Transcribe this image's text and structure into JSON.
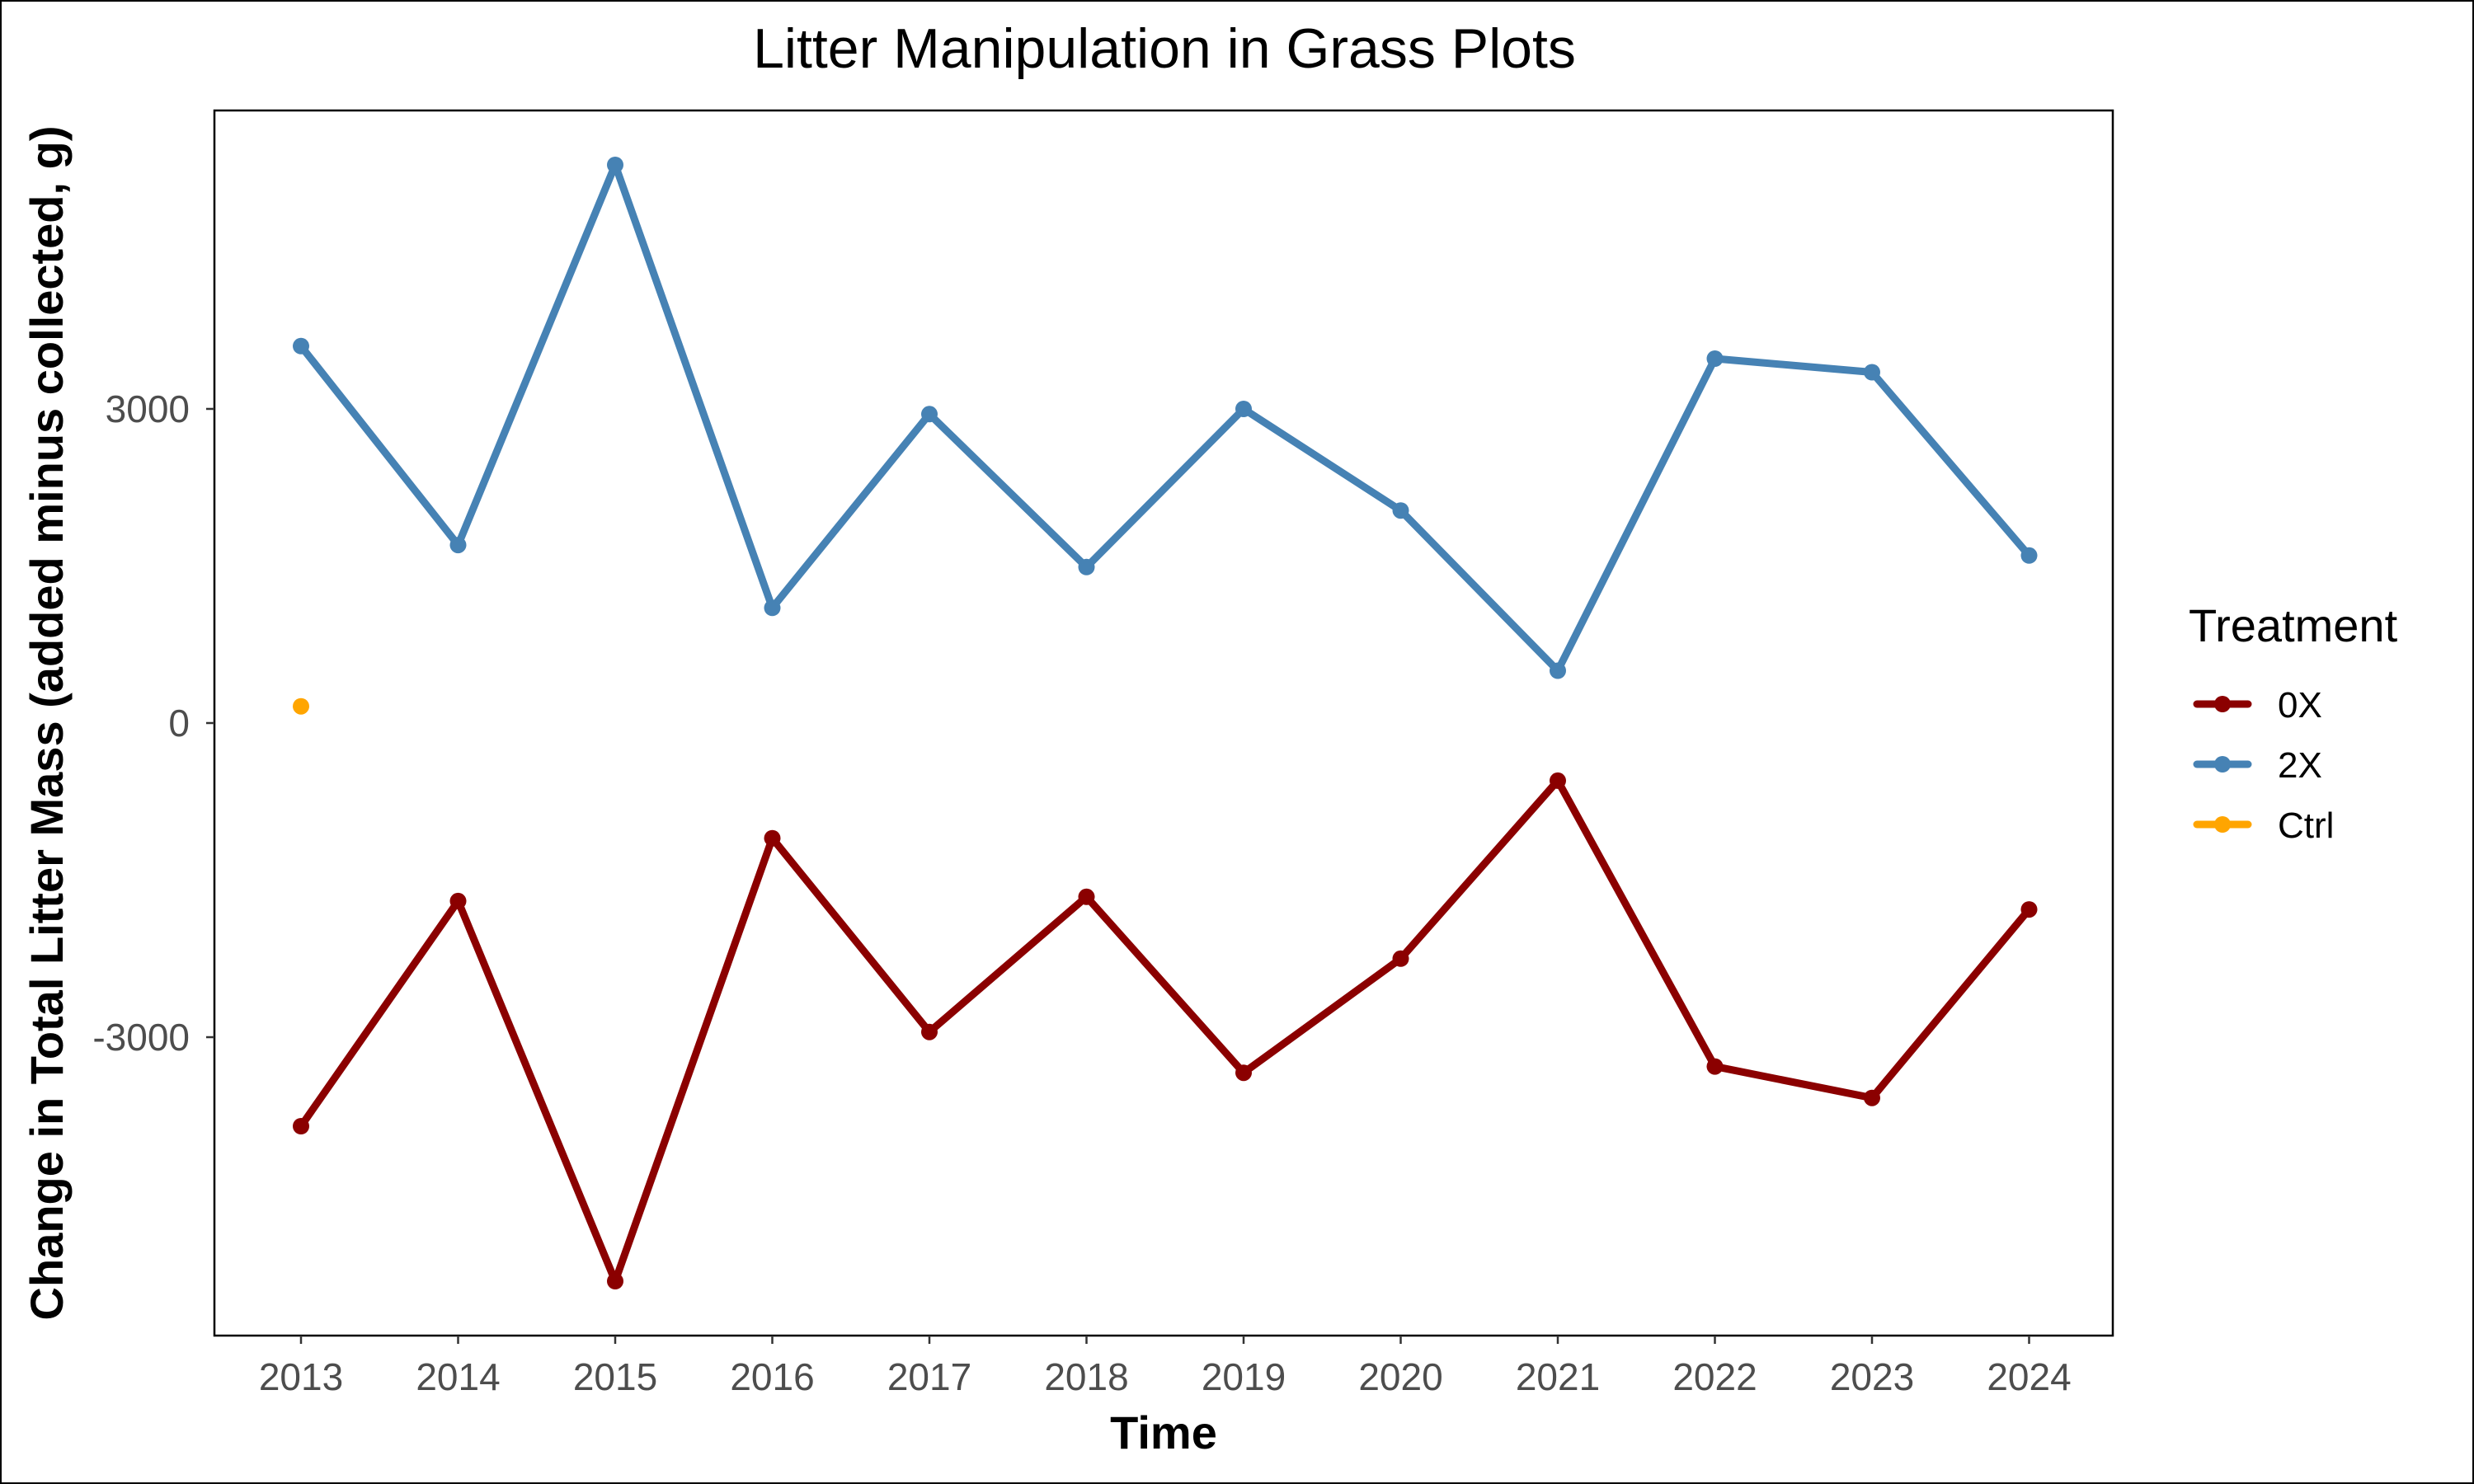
{
  "chart_data": {
    "type": "line",
    "title": "Litter Manipulation in Grass Plots",
    "xlabel": "Time",
    "ylabel": "Change in Total Litter Mass (added minus collected, g)",
    "x": [
      "2013",
      "2014",
      "2015",
      "2016",
      "2017",
      "2018",
      "2019",
      "2020",
      "2021",
      "2022",
      "2023",
      "2024"
    ],
    "y_ticks": [
      {
        "value": -3000,
        "label": "-3000"
      },
      {
        "value": 0,
        "label": "0"
      },
      {
        "value": 3000,
        "label": "3000"
      }
    ],
    "ylim": [
      -5850,
      5850
    ],
    "grid": false,
    "legend": {
      "title": "Treatment",
      "position": "right"
    },
    "series": [
      {
        "name": "0X",
        "color": "#8B0000",
        "values": [
          -3850,
          -1700,
          -5330,
          -1100,
          -2950,
          -1660,
          -3340,
          -2250,
          -550,
          -3280,
          -3580,
          -1780
        ]
      },
      {
        "name": "2X",
        "color": "#4682B4",
        "values": [
          3600,
          1700,
          5330,
          1100,
          2950,
          1490,
          3000,
          2030,
          500,
          3480,
          3350,
          1600
        ]
      },
      {
        "name": "Ctrl",
        "color": "#FFA500",
        "values": [
          160,
          null,
          null,
          null,
          null,
          null,
          null,
          null,
          null,
          null,
          null,
          null
        ]
      }
    ]
  }
}
